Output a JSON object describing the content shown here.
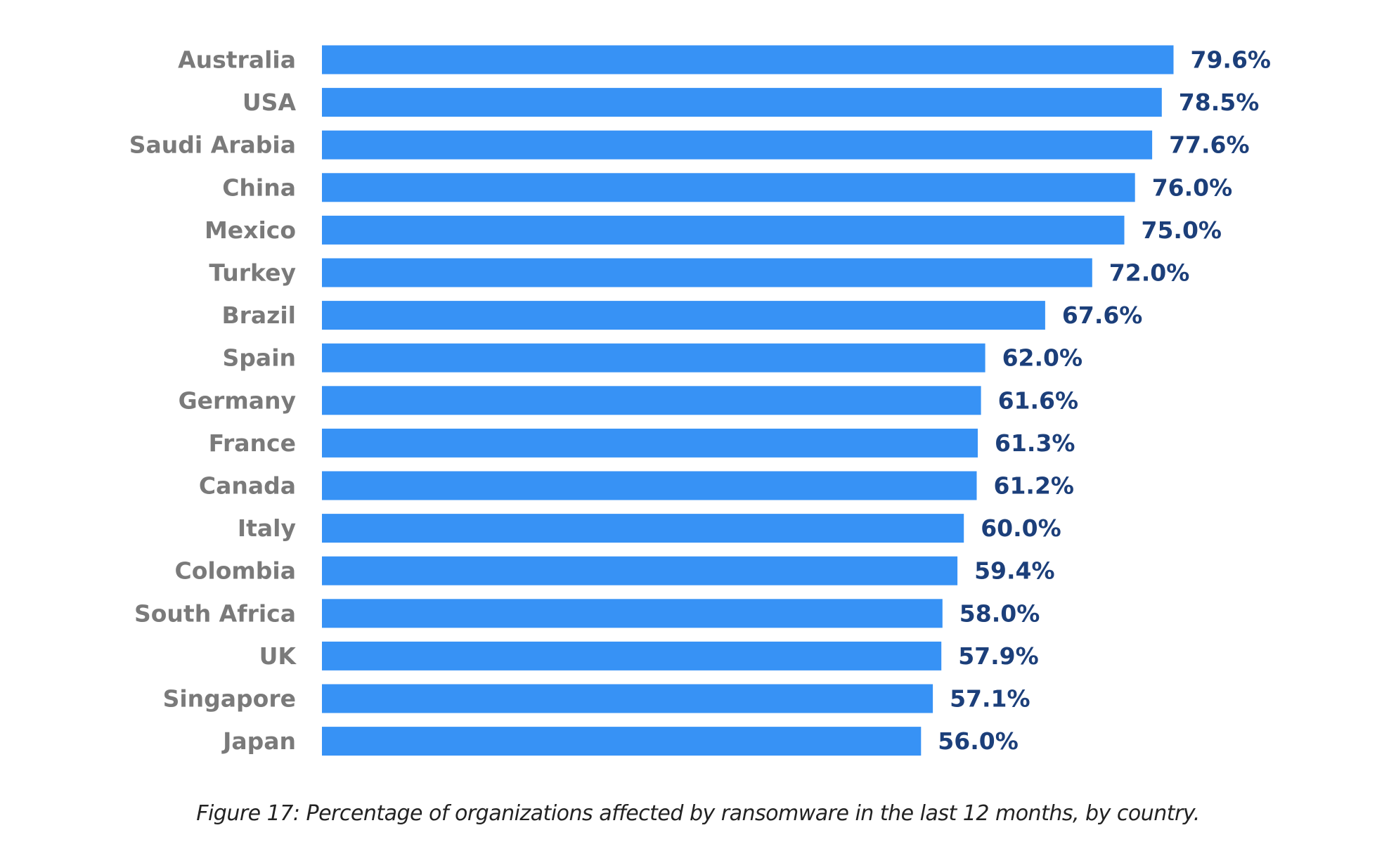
{
  "chart_data": {
    "type": "bar",
    "orientation": "horizontal",
    "categories": [
      "Australia",
      "USA",
      "Saudi Arabia",
      "China",
      "Mexico",
      "Turkey",
      "Brazil",
      "Spain",
      "Germany",
      "France",
      "Canada",
      "Italy",
      "Colombia",
      "South Africa",
      "UK",
      "Singapore",
      "Japan"
    ],
    "values": [
      79.6,
      78.5,
      77.6,
      76.0,
      75.0,
      72.0,
      67.6,
      62.0,
      61.6,
      61.3,
      61.2,
      60.0,
      59.4,
      58.0,
      57.9,
      57.1,
      56.0
    ],
    "value_labels": [
      "79.6%",
      "78.5%",
      "77.6%",
      "76.0%",
      "75.0%",
      "72.0%",
      "67.6%",
      "62.0%",
      "61.6%",
      "61.3%",
      "61.2%",
      "60.0%",
      "59.4%",
      "58.0%",
      "57.9%",
      "57.1%",
      "56.0%"
    ],
    "unit": "%",
    "grid": false,
    "legend": "none",
    "bar_color": "#3792f5",
    "category_label_color": "#7a7a7a",
    "value_label_color": "#1c3f7a"
  },
  "caption": "Figure 17: Percentage of organizations affected by ransomware in the last 12 months, by country."
}
